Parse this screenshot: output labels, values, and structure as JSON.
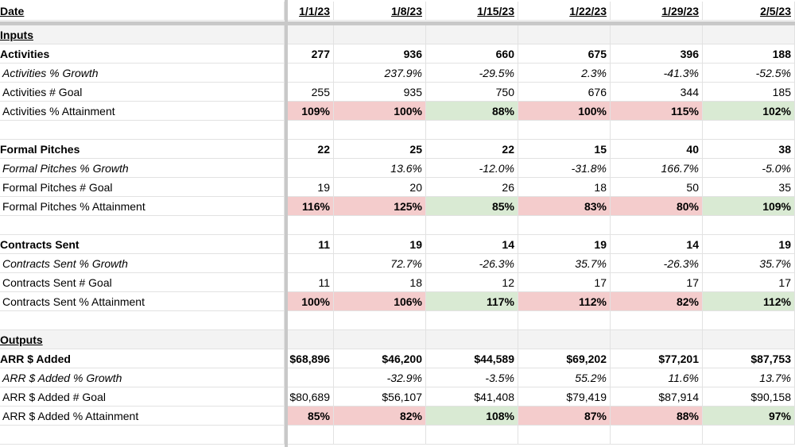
{
  "header": {
    "label": "Date",
    "dates": [
      "1/1/23",
      "1/8/23",
      "1/15/23",
      "1/22/23",
      "1/29/23",
      "2/5/23"
    ]
  },
  "sections": [
    {
      "title": "Inputs",
      "groups": [
        {
          "rows": [
            {
              "label": "Activities",
              "style": "bold",
              "cells": [
                "277",
                "936",
                "660",
                "675",
                "396",
                "188"
              ]
            },
            {
              "label": "Activities % Growth",
              "style": "italic",
              "cells": [
                null,
                "237.9%",
                "-29.5%",
                "2.3%",
                "-41.3%",
                "-52.5%"
              ]
            },
            {
              "label": "Activities # Goal",
              "style": "plain",
              "cells": [
                "255",
                "935",
                "750",
                "676",
                "344",
                "185"
              ]
            },
            {
              "label": "Activities % Attainment",
              "style": "attain",
              "cells": [
                "109%",
                "100%",
                "88%",
                "100%",
                "115%",
                "102%"
              ],
              "fills": [
                "#f4cccc",
                "#f4cccc",
                "#d9ead3",
                "#f4cccc",
                "#f4cccc",
                "#d9ead3"
              ]
            }
          ]
        },
        {
          "rows": [
            {
              "label": "Formal Pitches",
              "style": "bold",
              "cells": [
                "22",
                "25",
                "22",
                "15",
                "40",
                "38"
              ]
            },
            {
              "label": "Formal Pitches % Growth",
              "style": "italic",
              "cells": [
                null,
                "13.6%",
                "-12.0%",
                "-31.8%",
                "166.7%",
                "-5.0%"
              ]
            },
            {
              "label": "Formal Pitches # Goal",
              "style": "plain",
              "cells": [
                "19",
                "20",
                "26",
                "18",
                "50",
                "35"
              ]
            },
            {
              "label": "Formal Pitches % Attainment",
              "style": "attain",
              "cells": [
                "116%",
                "125%",
                "85%",
                "83%",
                "80%",
                "109%"
              ],
              "fills": [
                "#f4cccc",
                "#f4cccc",
                "#d9ead3",
                "#f4cccc",
                "#f4cccc",
                "#d9ead3"
              ]
            }
          ]
        },
        {
          "rows": [
            {
              "label": "Contracts Sent",
              "style": "bold",
              "cells": [
                "11",
                "19",
                "14",
                "19",
                "14",
                "19"
              ]
            },
            {
              "label": "Contracts Sent % Growth",
              "style": "italic",
              "cells": [
                null,
                "72.7%",
                "-26.3%",
                "35.7%",
                "-26.3%",
                "35.7%"
              ]
            },
            {
              "label": "Contracts Sent # Goal",
              "style": "plain",
              "cells": [
                "11",
                "18",
                "12",
                "17",
                "17",
                "17"
              ]
            },
            {
              "label": "Contracts Sent % Attainment",
              "style": "attain",
              "cells": [
                "100%",
                "106%",
                "117%",
                "112%",
                "82%",
                "112%"
              ],
              "fills": [
                "#f4cccc",
                "#f4cccc",
                "#d9ead3",
                "#f4cccc",
                "#f4cccc",
                "#d9ead3"
              ]
            }
          ]
        }
      ]
    },
    {
      "title": "Outputs",
      "groups": [
        {
          "rows": [
            {
              "label": "ARR $ Added",
              "style": "bold",
              "cells": [
                "$68,896",
                "$46,200",
                "$44,589",
                "$69,202",
                "$77,201",
                "$87,753"
              ]
            },
            {
              "label": "ARR $ Added % Growth",
              "style": "italic",
              "cells": [
                null,
                "-32.9%",
                "-3.5%",
                "55.2%",
                "11.6%",
                "13.7%"
              ]
            },
            {
              "label": "ARR $ Added # Goal",
              "style": "plain",
              "cells": [
                "$80,689",
                "$56,107",
                "$41,408",
                "$79,419",
                "$87,914",
                "$90,158"
              ]
            },
            {
              "label": "ARR $ Added % Attainment",
              "style": "attain",
              "cells": [
                "85%",
                "82%",
                "108%",
                "87%",
                "88%",
                "97%"
              ],
              "fills": [
                "#f4cccc",
                "#f4cccc",
                "#d9ead3",
                "#f4cccc",
                "#f4cccc",
                "#d9ead3"
              ]
            }
          ]
        }
      ]
    }
  ]
}
